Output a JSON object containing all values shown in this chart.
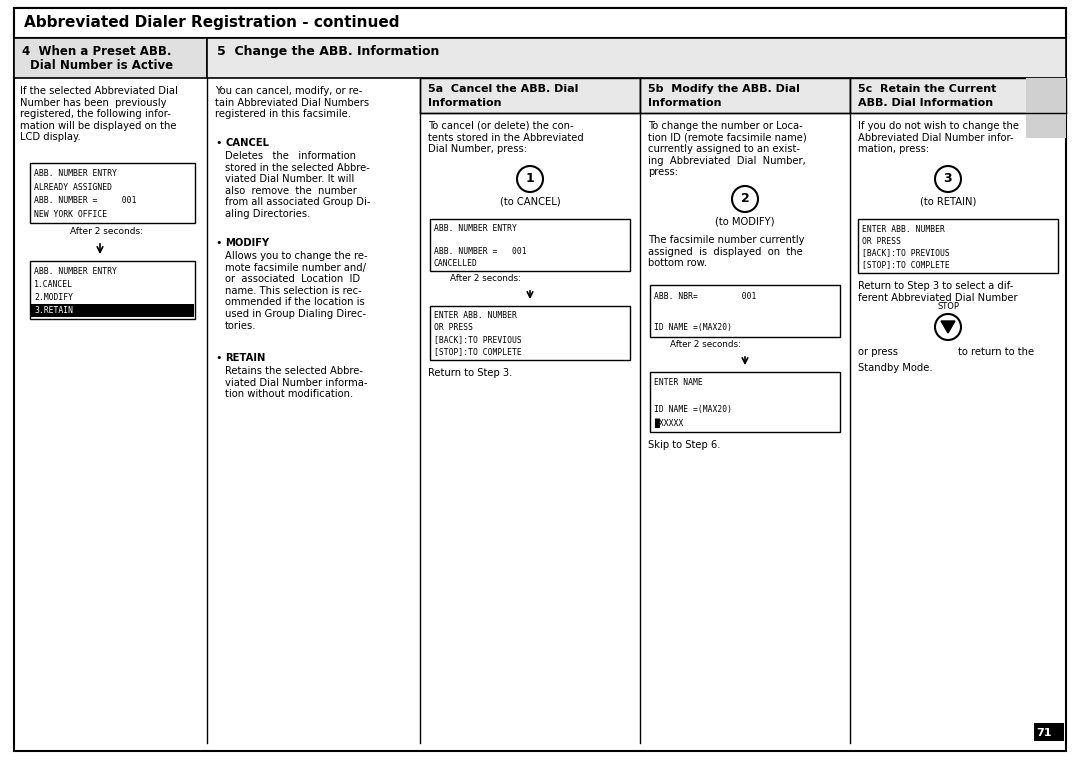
{
  "title": "Abbreviated Dialer Registration - continued",
  "bg_color": "#ffffff",
  "page_number": "71",
  "sec4_head1": "4  When a Preset ABB.",
  "sec4_head2": "Dial Number is Active",
  "sec5_head": "5  Change the ABB. Information",
  "sec4_body": "If the selected Abbreviated Dial\nNumber has been  previously\nregistered, the following infor-\nmation will be displayed on the\nLCD display.",
  "lcd1_lines": [
    "ABB. NUMBER ENTRY",
    "ALREADY ASSIGNED",
    "ABB. NUMBER =     001",
    "NEW YORK OFFICE"
  ],
  "after2sec": "After 2 seconds:",
  "lcd2_lines": [
    "ABB. NUMBER ENTRY",
    "1.CANCEL",
    "2.MODIFY",
    "3.RETAIN"
  ],
  "lcd2_highlight_idx": 3,
  "sec5_body": "You can cancel, modify, or re-\ntain Abbreviated Dial Numbers\nregistered in this facsimile.",
  "cancel_title": "CANCEL",
  "cancel_body": "Deletes   the   information\nstored in the selected Abbre-\nviated Dial Number. It will\nalso  remove  the  number\nfrom all associated Group Di-\naling Directories.",
  "modify_title": "MODIFY",
  "modify_body": "Allows you to change the re-\nmote facsimile number and/\nor  associated  Location  ID\nname. This selection is rec-\nommended if the location is\nused in Group Dialing Direc-\ntories.",
  "retain_title": "RETAIN",
  "retain_body": "Retains the selected Abbre-\nviated Dial Number informa-\ntion without modification.",
  "s5a_head1": "5a  Cancel the ABB. Dial",
  "s5a_head2": "Information",
  "s5a_body": "To cancel (or delete) the con-\ntents stored in the Abbreviated\nDial Number, press:",
  "s5a_circle": "1",
  "s5a_clabel": "(to CANCEL)",
  "s5a_lcd1": [
    "ABB. NUMBER ENTRY",
    "",
    "ABB. NUMBER =   001",
    "CANCELLED"
  ],
  "s5a_after2sec": "After 2 seconds:",
  "s5a_lcd2": [
    "ENTER ABB. NUMBER",
    "OR PRESS",
    "[BACK]:TO PREVIOUS",
    "[STOP]:TO COMPLETE"
  ],
  "s5a_footer": "Return to Step 3.",
  "s5b_head1": "5b  Modify the ABB. Dial",
  "s5b_head2": "Information",
  "s5b_body": "To change the number or Loca-\ntion ID (remote facsimile name)\ncurrently assigned to an exist-\ning  Abbreviated  Dial  Number,\npress:",
  "s5b_circle": "2",
  "s5b_clabel": "(to MODIFY)",
  "s5b_mid": "The facsimile number currently\nassigned  is  displayed  on  the\nbottom row.",
  "s5b_lcd1": [
    "ABB. NBR=         001",
    "",
    "ID NAME =(MAX20)"
  ],
  "s5b_after2sec": "After 2 seconds:",
  "s5b_lcd2": [
    "ENTER NAME",
    "",
    "ID NAME =(MAX20)",
    "█XXXXX"
  ],
  "s5b_footer": "Skip to Step 6.",
  "s5c_head1": "5c  Retain the Current",
  "s5c_head2": "ABB. Dial Information",
  "s5c_body": "If you do not wish to change the\nAbbreviated Dial Number infor-\nmation, press:",
  "s5c_circle": "3",
  "s5c_clabel": "(to RETAIN)",
  "s5c_lcd": [
    "ENTER ABB. NUMBER",
    "OR PRESS",
    "[BACK]:TO PREVIOUS",
    "[STOP]:TO COMPLETE"
  ],
  "s5c_text1a": "Return to Step 3 to select a dif-",
  "s5c_text1b": "ferent Abbreviated Dial Number",
  "s5c_stop": "STOP",
  "s5c_orpress": "or press",
  "s5c_toreturn": "to return to the",
  "s5c_standby": "Standby Mode.",
  "gray_shade": "#d0d0d0",
  "light_gray": "#e8e8e8",
  "header_gray": "#e0e0e0"
}
